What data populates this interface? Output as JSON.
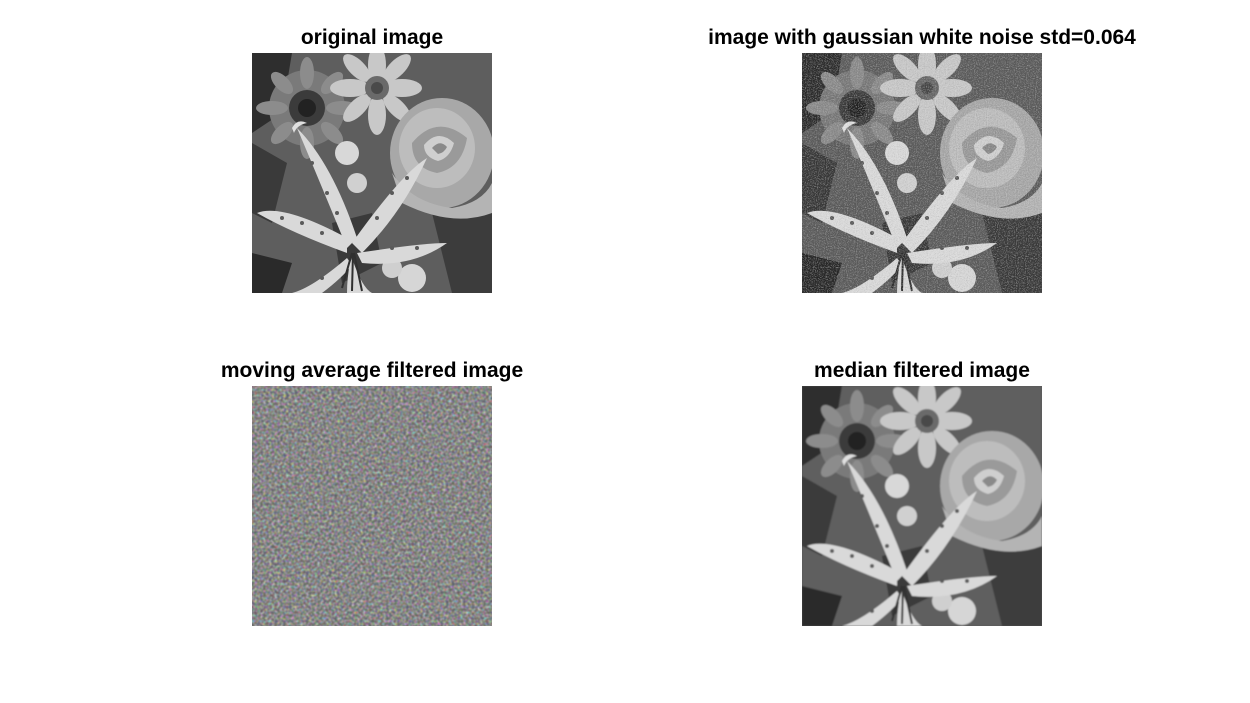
{
  "figure": {
    "panels": [
      {
        "title": "original image",
        "image": "grayscale-flowers-image"
      },
      {
        "title": "image with gaussian white noise std=0.064",
        "image": "grayscale-flowers-image-noisy"
      },
      {
        "title": "moving average filtered image",
        "image": "grayscale-flowers-image-blurred"
      },
      {
        "title": "median filtered image",
        "image": "grayscale-flowers-image-median"
      }
    ]
  }
}
